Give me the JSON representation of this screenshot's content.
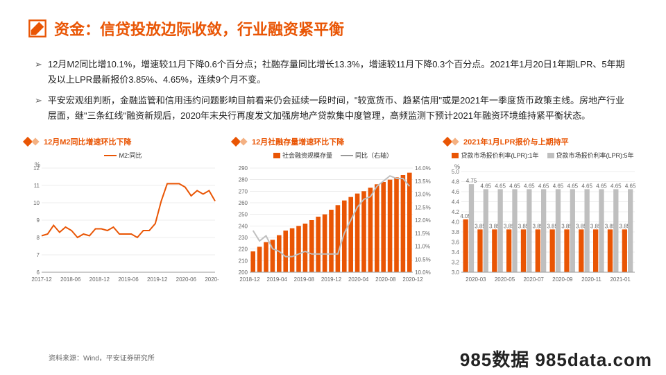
{
  "header": {
    "title": "资金：信贷投放边际收敛，行业融资紧平衡"
  },
  "bullets": [
    "12月M2同比增10.1%，增速较11月下降0.6个百分点；社融存量同比增长13.3%，增速较11月下降0.3个百分点。2021年1月20日1年期LPR、5年期及以上LPR最新报价3.85%、4.65%，连续9个月不变。",
    "平安宏观组判断，金融监管和信用违约问题影响目前看来仍会延续一段时间，\"较宽货币、趋紧信用\"或是2021年一季度货币政策主线。房地产行业层面，继\"三条红线\"融资新规后，2020年末央行再度发文加强房地产贷款集中度管理，高频监测下预计2021年融资环境维持紧平衡状态。"
  ],
  "chart1": {
    "title": "12月M2同比增速环比下降",
    "legend": "M2:同比",
    "ylabel": "%",
    "ylim": [
      6,
      12
    ],
    "ytick_step": 1,
    "x_labels": [
      "2017-12",
      "2018-06",
      "2018-12",
      "2019-06",
      "2019-12",
      "2020-06",
      "2020-12"
    ],
    "values": [
      8.1,
      8.2,
      8.7,
      8.3,
      8.6,
      8.4,
      8,
      8.2,
      8.1,
      8.5,
      8.5,
      8.4,
      8.6,
      8.2,
      8.2,
      8.2,
      8,
      8.4,
      8.4,
      8.8,
      10.1,
      11.1,
      11.1,
      11.1,
      10.9,
      10.4,
      10.7,
      10.5,
      10.7,
      10.1
    ],
    "line_color": "#e95504",
    "grid_color": "#d9d9d9",
    "background": "#ffffff"
  },
  "chart2": {
    "title": "12月社融存量增速环比下降",
    "legend_bar": "社会融资规模存量",
    "legend_line": "同比（右轴）",
    "ylabel_left_min": 200,
    "ylabel_left_max": 290,
    "ytick_left_step": 10,
    "ylabel_right_min": 10.0,
    "ylabel_right_max": 14.0,
    "ytick_right_step": 0.5,
    "x_labels": [
      "2018-12",
      "2019-04",
      "2019-08",
      "2019-12",
      "2020-04",
      "2020-08",
      "2020-12"
    ],
    "bar_values": [
      218,
      222,
      226,
      228,
      232,
      236,
      238,
      240,
      242,
      245,
      248,
      250,
      254,
      258,
      262,
      265,
      268,
      270,
      273,
      276,
      278,
      280,
      282,
      284,
      286
    ],
    "line_values": [
      11.6,
      11.2,
      11.4,
      10.9,
      10.8,
      10.6,
      10.6,
      10.7,
      10.8,
      10.7,
      10.7,
      10.7,
      10.7,
      10.7,
      11.5,
      12,
      12.5,
      12.8,
      12.9,
      13.3,
      13.5,
      13.7,
      13.6,
      13.6,
      13.3
    ],
    "bar_color": "#e95504",
    "line_color": "#bfbfbf",
    "grid_color": "#d9d9d9"
  },
  "chart3": {
    "title": "2021年1月LPR报价与上期持平",
    "legend1": "贷款市场报价利率(LPR):1年",
    "legend2": "贷款市场报价利率(LPR):5年",
    "ylabel": "%",
    "ylim": [
      3.0,
      5.0
    ],
    "ytick_step": 0.2,
    "x_labels": [
      "2020-03",
      "2020-05",
      "2020-07",
      "2020-09",
      "2020-11",
      "2021-01"
    ],
    "series1_values": [
      4.05,
      3.85,
      3.85,
      3.85,
      3.85,
      3.85,
      3.85,
      3.85,
      3.85,
      3.85,
      3.85,
      3.85
    ],
    "series2_values": [
      4.75,
      4.65,
      4.65,
      4.65,
      4.65,
      4.65,
      4.65,
      4.65,
      4.65,
      4.65,
      4.65,
      4.65
    ],
    "series1_color": "#e95504",
    "series2_color": "#bfbfbf",
    "grid_color": "#d9d9d9"
  },
  "source": "资料来源：Wind，平安证券研究所",
  "watermark": "985数据 985data.com"
}
